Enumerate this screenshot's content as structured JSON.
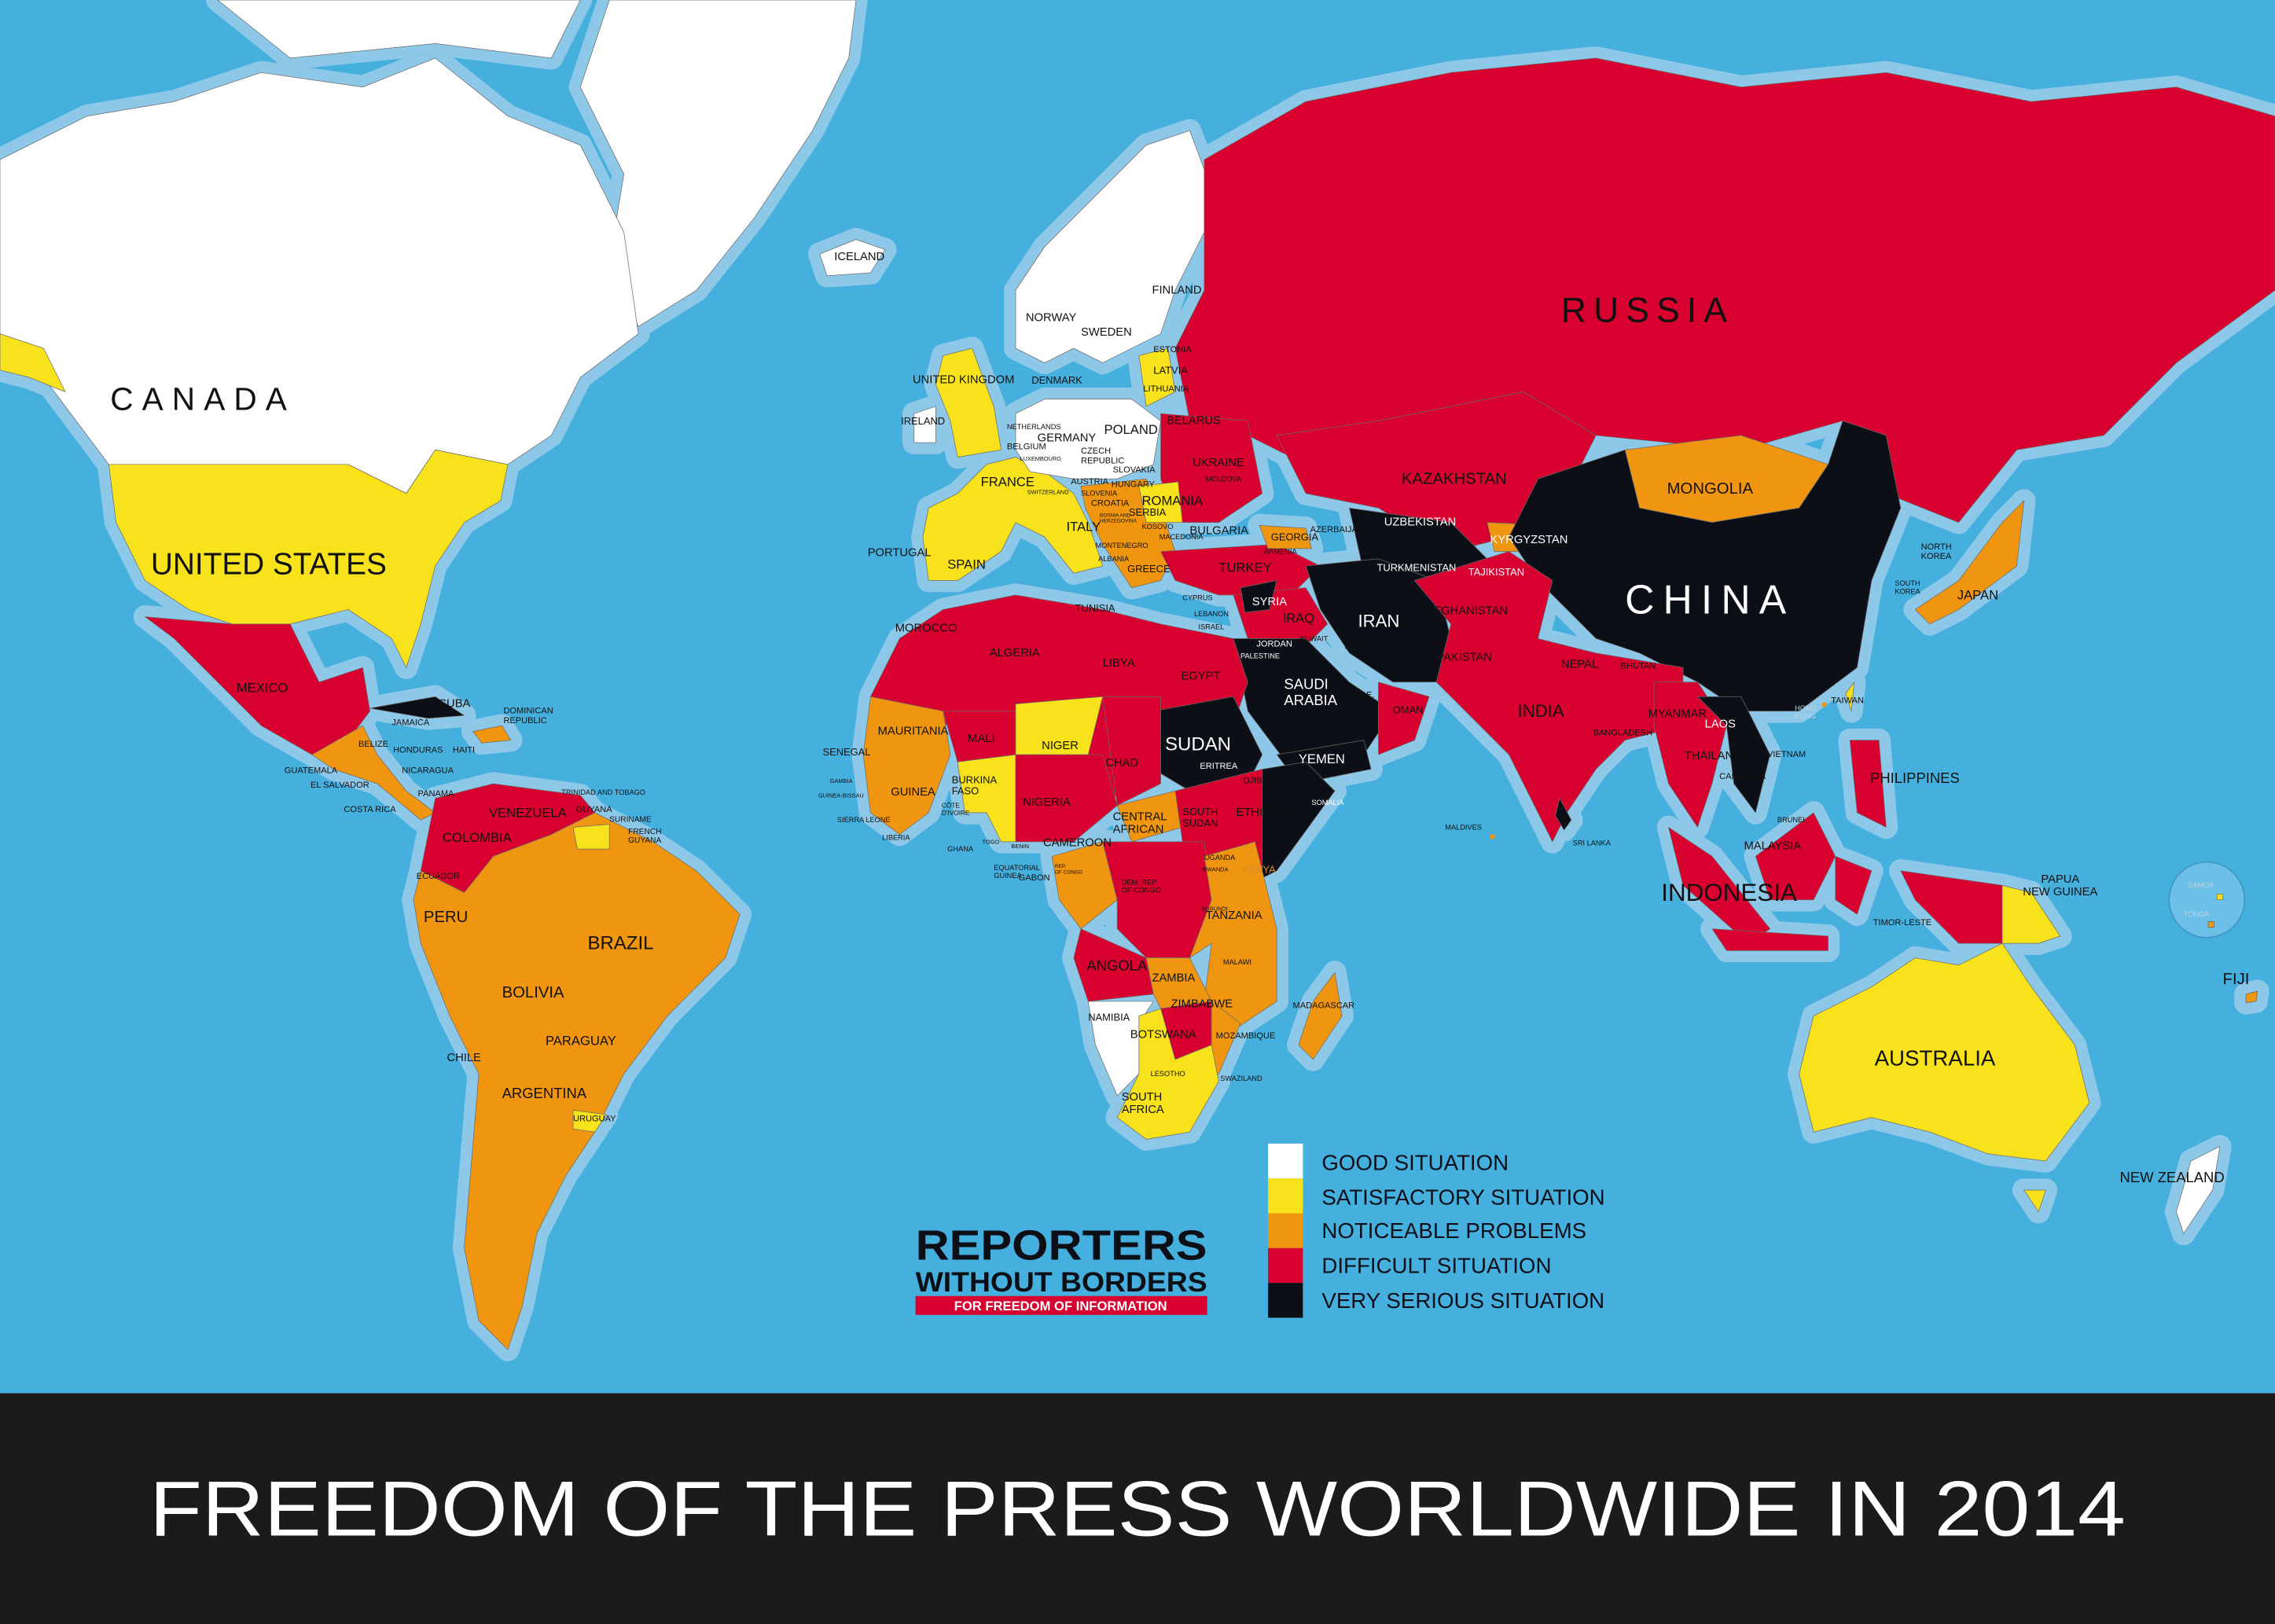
{
  "title": "FREEDOM OF THE PRESS WORLDWIDE IN 2014",
  "colors": {
    "sea": "#45afde",
    "shelf": "#8ec8e8",
    "good": "#ffffff",
    "satisfactory": "#f7e21b",
    "noticeable": "#f0950f",
    "difficult": "#d8002e",
    "very_serious": "#0d0f17",
    "footer": "#1c1a1b"
  },
  "legend": [
    {
      "label": "GOOD SITUATION",
      "color": "#ffffff"
    },
    {
      "label": "SATISFACTORY SITUATION",
      "color": "#f7e21b"
    },
    {
      "label": "NOTICEABLE PROBLEMS",
      "color": "#f0950f"
    },
    {
      "label": "DIFFICULT SITUATION",
      "color": "#d8002e"
    },
    {
      "label": "VERY SERIOUS SITUATION",
      "color": "#0d0f17"
    }
  ],
  "logo": {
    "line1": "REPORTERS",
    "line2": "WITHOUT BORDERS",
    "tagline": "FOR FREEDOM OF INFORMATION"
  },
  "labels": [
    "CANADA",
    "UNITED STATES",
    "MEXICO",
    "CUBA",
    "JAMAICA",
    [
      "DOMINICAN",
      "REPUBLIC"
    ],
    "BELIZE",
    "HONDURAS",
    "HAITI",
    "GUATEMALA",
    "NICARAGUA",
    "EL SALVADOR",
    "PANAMA",
    "COSTA RICA",
    "TRINIDAD AND TOBAGO",
    "GUYANA",
    "SURINAME",
    [
      "FRENCH",
      "GUYANA"
    ],
    "VENEZUELA",
    "COLOMBIA",
    "ECUADOR",
    "PERU",
    "BRAZIL",
    "BOLIVIA",
    "PARAGUAY",
    "CHILE",
    "ARGENTINA",
    "URUGUAY",
    "ICELAND",
    "NORWAY",
    "SWEDEN",
    "FINLAND",
    "ESTONIA",
    "LATVIA",
    "LITHUANIA",
    "UNITED KINGDOM",
    "DENMARK",
    "IRELAND",
    "BELARUS",
    "NETHERLANDS",
    "GERMANY",
    "POLAND",
    "BELGIUM",
    [
      "CZECH",
      "REPUBLIC"
    ],
    "LUXEMBOURG",
    "SLOVAKIA",
    "UKRAINE",
    "MOLDOVA",
    "FRANCE",
    "AUSTRIA",
    "HUNGARY",
    "SWITZERLAND",
    "ROMANIA",
    "SLOVENIA",
    "CROATIA",
    "SERBIA",
    [
      "BOSNIA AND",
      "HERZEGOVINA"
    ],
    "KOSOVO",
    "ITALY",
    "BULGARIA",
    "MACEDONIA",
    "GEORGIA",
    "AZERBAIJAN",
    "ARMENIA",
    "MONTENEGRO",
    "PORTUGAL",
    "SPAIN",
    "ALBANIA",
    "GREECE",
    "TURKEY",
    "CYPRUS",
    "LEBANON",
    "ISRAEL",
    "TUNISIA",
    "MOROCCO",
    "ALGERIA",
    "LIBYA",
    "EGYPT",
    "SYRIA",
    "IRAQ",
    "JORDAN",
    "PALESTINE",
    "KUWAIT",
    "IRAN",
    [
      "SAUDI",
      "ARABIA"
    ],
    "QATAR",
    "U.A.E.",
    "OMAN",
    "YEMEN",
    "UZBEKISTAN",
    "TURKMENISTAN",
    "KYRGYZSTAN",
    "TAJIKISTAN",
    "KAZAKHSTAN",
    "AFGHANISTAN",
    "PAKISTAN",
    "NEPAL",
    "BHUTAN",
    "INDIA",
    "BANGLADESH",
    "MYANMAR",
    "LAOS",
    "THAILAND",
    "VIETNAM",
    "CAMBODIA",
    "MALDIVES",
    "SRI LANKA",
    "BRUNEI",
    "MALAYSIA",
    "INDONESIA",
    "TIMOR-LESTE",
    "PHILIPPINES",
    [
      "PAPUA",
      "NEW GUINEA"
    ],
    "FIJI",
    "TAIWAN",
    [
      "HONG",
      "KONG"
    ],
    [
      "SOUTH",
      "KOREA"
    ],
    [
      "NORTH",
      "KOREA"
    ],
    "JAPAN",
    "CHINA",
    "MONGOLIA",
    "RUSSIA",
    "AUSTRALIA",
    "NEW ZEALAND",
    "SAMOA",
    "TONGA",
    "MAURITANIA",
    "MALI",
    "NIGER",
    "SENEGAL",
    "CHAD",
    "SUDAN",
    "ERITREA",
    "GAMBIA",
    [
      "BURKINA",
      "FASO"
    ],
    "GUINEA",
    "GUINEA-BISSAU",
    "NIGERIA",
    [
      "CÔTE",
      "D'IVOIRE"
    ],
    "SIERRA LEONE",
    "LIBERIA",
    "GHANA",
    "TOGO",
    "BENIN",
    "CAMEROON",
    [
      "CENTRAL",
      "AFRICAN"
    ],
    [
      "SOUTH",
      "SUDAN"
    ],
    "ETHIOPIA",
    "DJIBOUTI",
    "SOMALIA",
    [
      "EQUATORIAL",
      "GUINEA"
    ],
    "GABON",
    [
      "REP.",
      "OF CONGO"
    ],
    "UGANDA",
    "KENYA",
    "RWANDA",
    [
      "DEM. REP.",
      "OF CONGO"
    ],
    "BURUNDI",
    "TANZANIA",
    "ANGOLA",
    "ZAMBIA",
    "MALAWI",
    "MADAGASCAR",
    "ZIMBABWE",
    "NAMIBIA",
    "BOTSWANA",
    "MOZAMBIQUE",
    "LESOTHO",
    "SWAZILAND",
    [
      "SOUTH",
      "AFRICA"
    ]
  ]
}
